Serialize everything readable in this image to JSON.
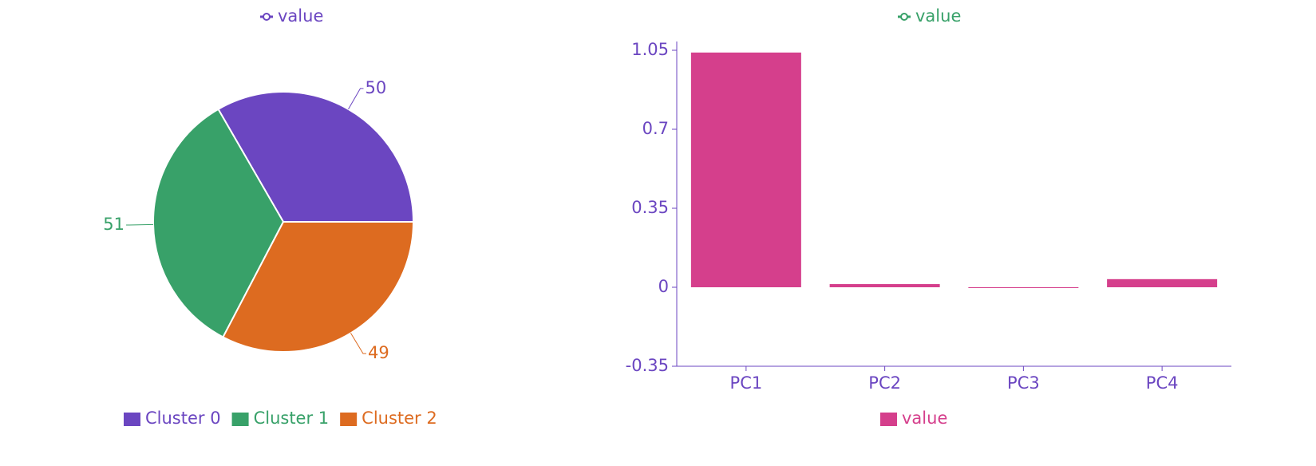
{
  "chart_data": [
    {
      "type": "pie",
      "top_legend": {
        "name": "value",
        "color": "#6b46c1"
      },
      "categories": [
        "Cluster 0",
        "Cluster 1",
        "Cluster 2"
      ],
      "values": [
        50,
        51,
        49
      ],
      "colors": [
        "#6b46c1",
        "#38a169",
        "#dd6b20"
      ]
    },
    {
      "type": "bar",
      "top_legend": {
        "name": "value",
        "color": "#38a169"
      },
      "categories": [
        "PC1",
        "PC2",
        "PC3",
        "PC4"
      ],
      "series": [
        {
          "name": "value",
          "color": "#d53f8c",
          "values": [
            1.04,
            0.014,
            -0.002,
            0.036
          ]
        }
      ],
      "ylim": [
        -0.35,
        1.05
      ],
      "yticks": [
        -0.35,
        0,
        0.35,
        0.7,
        1.05
      ],
      "axis_color": "#6b46c1"
    }
  ]
}
